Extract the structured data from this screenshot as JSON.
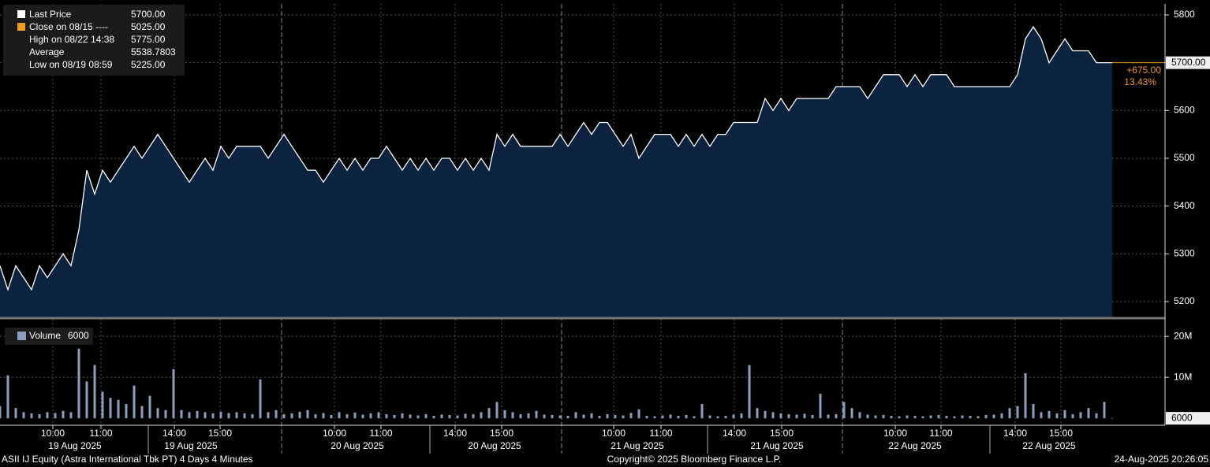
{
  "chart_data": {
    "type": "area",
    "legend": {
      "labels": [
        "Last Price",
        "Close on 08/15 ----",
        "High on 08/22 14:38",
        "Average",
        "Low on 08/19 08:59"
      ],
      "value_labels": [
        "5700.00",
        "5025.00",
        "5775.00",
        "5538.7803",
        "5225.00"
      ]
    },
    "xlim": [
      0,
      147.7
    ],
    "xticks": [
      {
        "value": 6.7,
        "label": "10:00"
      },
      {
        "value": 12.8,
        "label": "11:00"
      },
      {
        "value": 22.1,
        "label": "14:00"
      },
      {
        "value": 27.9,
        "label": "15:00"
      },
      {
        "value": 42.4,
        "label": "10:00"
      },
      {
        "value": 48.3,
        "label": "11:00"
      },
      {
        "value": 57.7,
        "label": "14:00"
      },
      {
        "value": 63.6,
        "label": "15:00"
      },
      {
        "value": 77.8,
        "label": "10:00"
      },
      {
        "value": 83.8,
        "label": "11:00"
      },
      {
        "value": 93.1,
        "label": "14:00"
      },
      {
        "value": 99.1,
        "label": "15:00"
      },
      {
        "value": 113.5,
        "label": "10:00"
      },
      {
        "value": 119.3,
        "label": "11:00"
      },
      {
        "value": 128.7,
        "label": "14:00"
      },
      {
        "value": 134.5,
        "label": "15:00"
      }
    ],
    "date_labels": [
      {
        "value": 9.5,
        "label": "19 Aug 2025"
      },
      {
        "value": 24.2,
        "label": "19 Aug 2025"
      },
      {
        "value": 45.3,
        "label": "20 Aug 2025"
      },
      {
        "value": 62.7,
        "label": "20 Aug 2025"
      },
      {
        "value": 80.8,
        "label": "21 Aug 2025"
      },
      {
        "value": 98.5,
        "label": "21 Aug 2025"
      },
      {
        "value": 116.0,
        "label": "22 Aug 2025"
      },
      {
        "value": 133.0,
        "label": "22 Aug 2025"
      }
    ],
    "price": {
      "name": "Last Price",
      "color": "#ffffff",
      "fill": "#0c2340",
      "ylim": [
        5167,
        5823
      ],
      "yticks": [
        5200,
        5300,
        5400,
        5500,
        5600,
        5700,
        5800
      ],
      "values": [
        5275,
        5225,
        5275,
        5250,
        5225,
        5275,
        5250,
        5275,
        5300,
        5275,
        5350,
        5475,
        5425,
        5475,
        5450,
        5475,
        5500,
        5525,
        5500,
        5525,
        5550,
        5525,
        5500,
        5475,
        5450,
        5475,
        5500,
        5475,
        5525,
        5500,
        5525,
        5525,
        5525,
        5525,
        5500,
        5525,
        5550,
        5525,
        5500,
        5475,
        5475,
        5450,
        5475,
        5500,
        5475,
        5500,
        5475,
        5500,
        5500,
        5525,
        5500,
        5475,
        5500,
        5475,
        5500,
        5475,
        5500,
        5500,
        5475,
        5500,
        5475,
        5500,
        5475,
        5550,
        5525,
        5550,
        5525,
        5525,
        5525,
        5525,
        5525,
        5550,
        5525,
        5550,
        5575,
        5550,
        5575,
        5575,
        5550,
        5525,
        5550,
        5500,
        5525,
        5550,
        5550,
        5550,
        5525,
        5550,
        5525,
        5550,
        5525,
        5550,
        5550,
        5575,
        5575,
        5575,
        5575,
        5625,
        5600,
        5625,
        5600,
        5625,
        5625,
        5625,
        5625,
        5625,
        5650,
        5650,
        5650,
        5650,
        5625,
        5650,
        5675,
        5675,
        5675,
        5650,
        5675,
        5650,
        5675,
        5675,
        5675,
        5650,
        5650,
        5650,
        5650,
        5650,
        5650,
        5650,
        5650,
        5675,
        5750,
        5775,
        5750,
        5700,
        5725,
        5750,
        5725,
        5725,
        5725,
        5700,
        5700,
        5700
      ],
      "last_tag": {
        "value": 5700,
        "label": "5700.00",
        "color": "#f39c12"
      },
      "change_labels": [
        "+675.00",
        "13.43%"
      ]
    },
    "volume": {
      "name": "Volume",
      "legend_value": "6000",
      "color": "#8ca0bd",
      "ylim": [
        -1700000,
        23300000
      ],
      "yticks": [
        {
          "value": 20000000,
          "label": "20M"
        },
        {
          "value": 10000000,
          "label": "10M"
        }
      ],
      "values": [
        3000000,
        10500000,
        2500000,
        1500000,
        1200000,
        1000000,
        1500000,
        1300000,
        1800000,
        1500000,
        17000000,
        9000000,
        13000000,
        6500000,
        5000000,
        4500000,
        3500000,
        8000000,
        3000000,
        5500000,
        2500000,
        2000000,
        12000000,
        2000000,
        1500000,
        1800000,
        1500000,
        1200000,
        1600000,
        1300000,
        1500000,
        1200000,
        1000000,
        9500000,
        1500000,
        2000000,
        1000000,
        1200000,
        1600000,
        2000000,
        1000000,
        1300000,
        800000,
        1500000,
        1000000,
        1400000,
        900000,
        1200000,
        1500000,
        1000000,
        800000,
        1200000,
        900000,
        700000,
        1000000,
        600000,
        900000,
        800000,
        700000,
        1100000,
        1000000,
        1500000,
        2500000,
        4000000,
        2000000,
        1500000,
        1000000,
        1200000,
        1800000,
        900000,
        800000,
        700000,
        600000,
        1500000,
        900000,
        1200000,
        600000,
        1000000,
        800000,
        700000,
        1300000,
        2200000,
        600000,
        500000,
        700000,
        900000,
        600000,
        800000,
        500000,
        3500000,
        700000,
        500000,
        600000,
        900000,
        1200000,
        13000000,
        2500000,
        1800000,
        1500000,
        1200000,
        1000000,
        900000,
        1100000,
        800000,
        6000000,
        900000,
        1000000,
        4000000,
        2500000,
        1500000,
        900000,
        700000,
        800000,
        600000,
        500000,
        700000,
        600000,
        500000,
        700000,
        800000,
        600000,
        500000,
        700000,
        600000,
        500000,
        800000,
        900000,
        1200000,
        2500000,
        3000000,
        11000000,
        3500000,
        1500000,
        1800000,
        1200000,
        2000000,
        1000000,
        1500000,
        2500000,
        1200000,
        4000000,
        6000
      ],
      "last_tag": {
        "value": 6000,
        "label": "6000"
      }
    },
    "footer": {
      "left": "ASII IJ Equity (Astra International Tbk PT) 4 Days 4 Minutes",
      "center": "Copyright© 2025 Bloomberg Finance L.P.",
      "right": "24-Aug-2025 20:26:05"
    }
  }
}
